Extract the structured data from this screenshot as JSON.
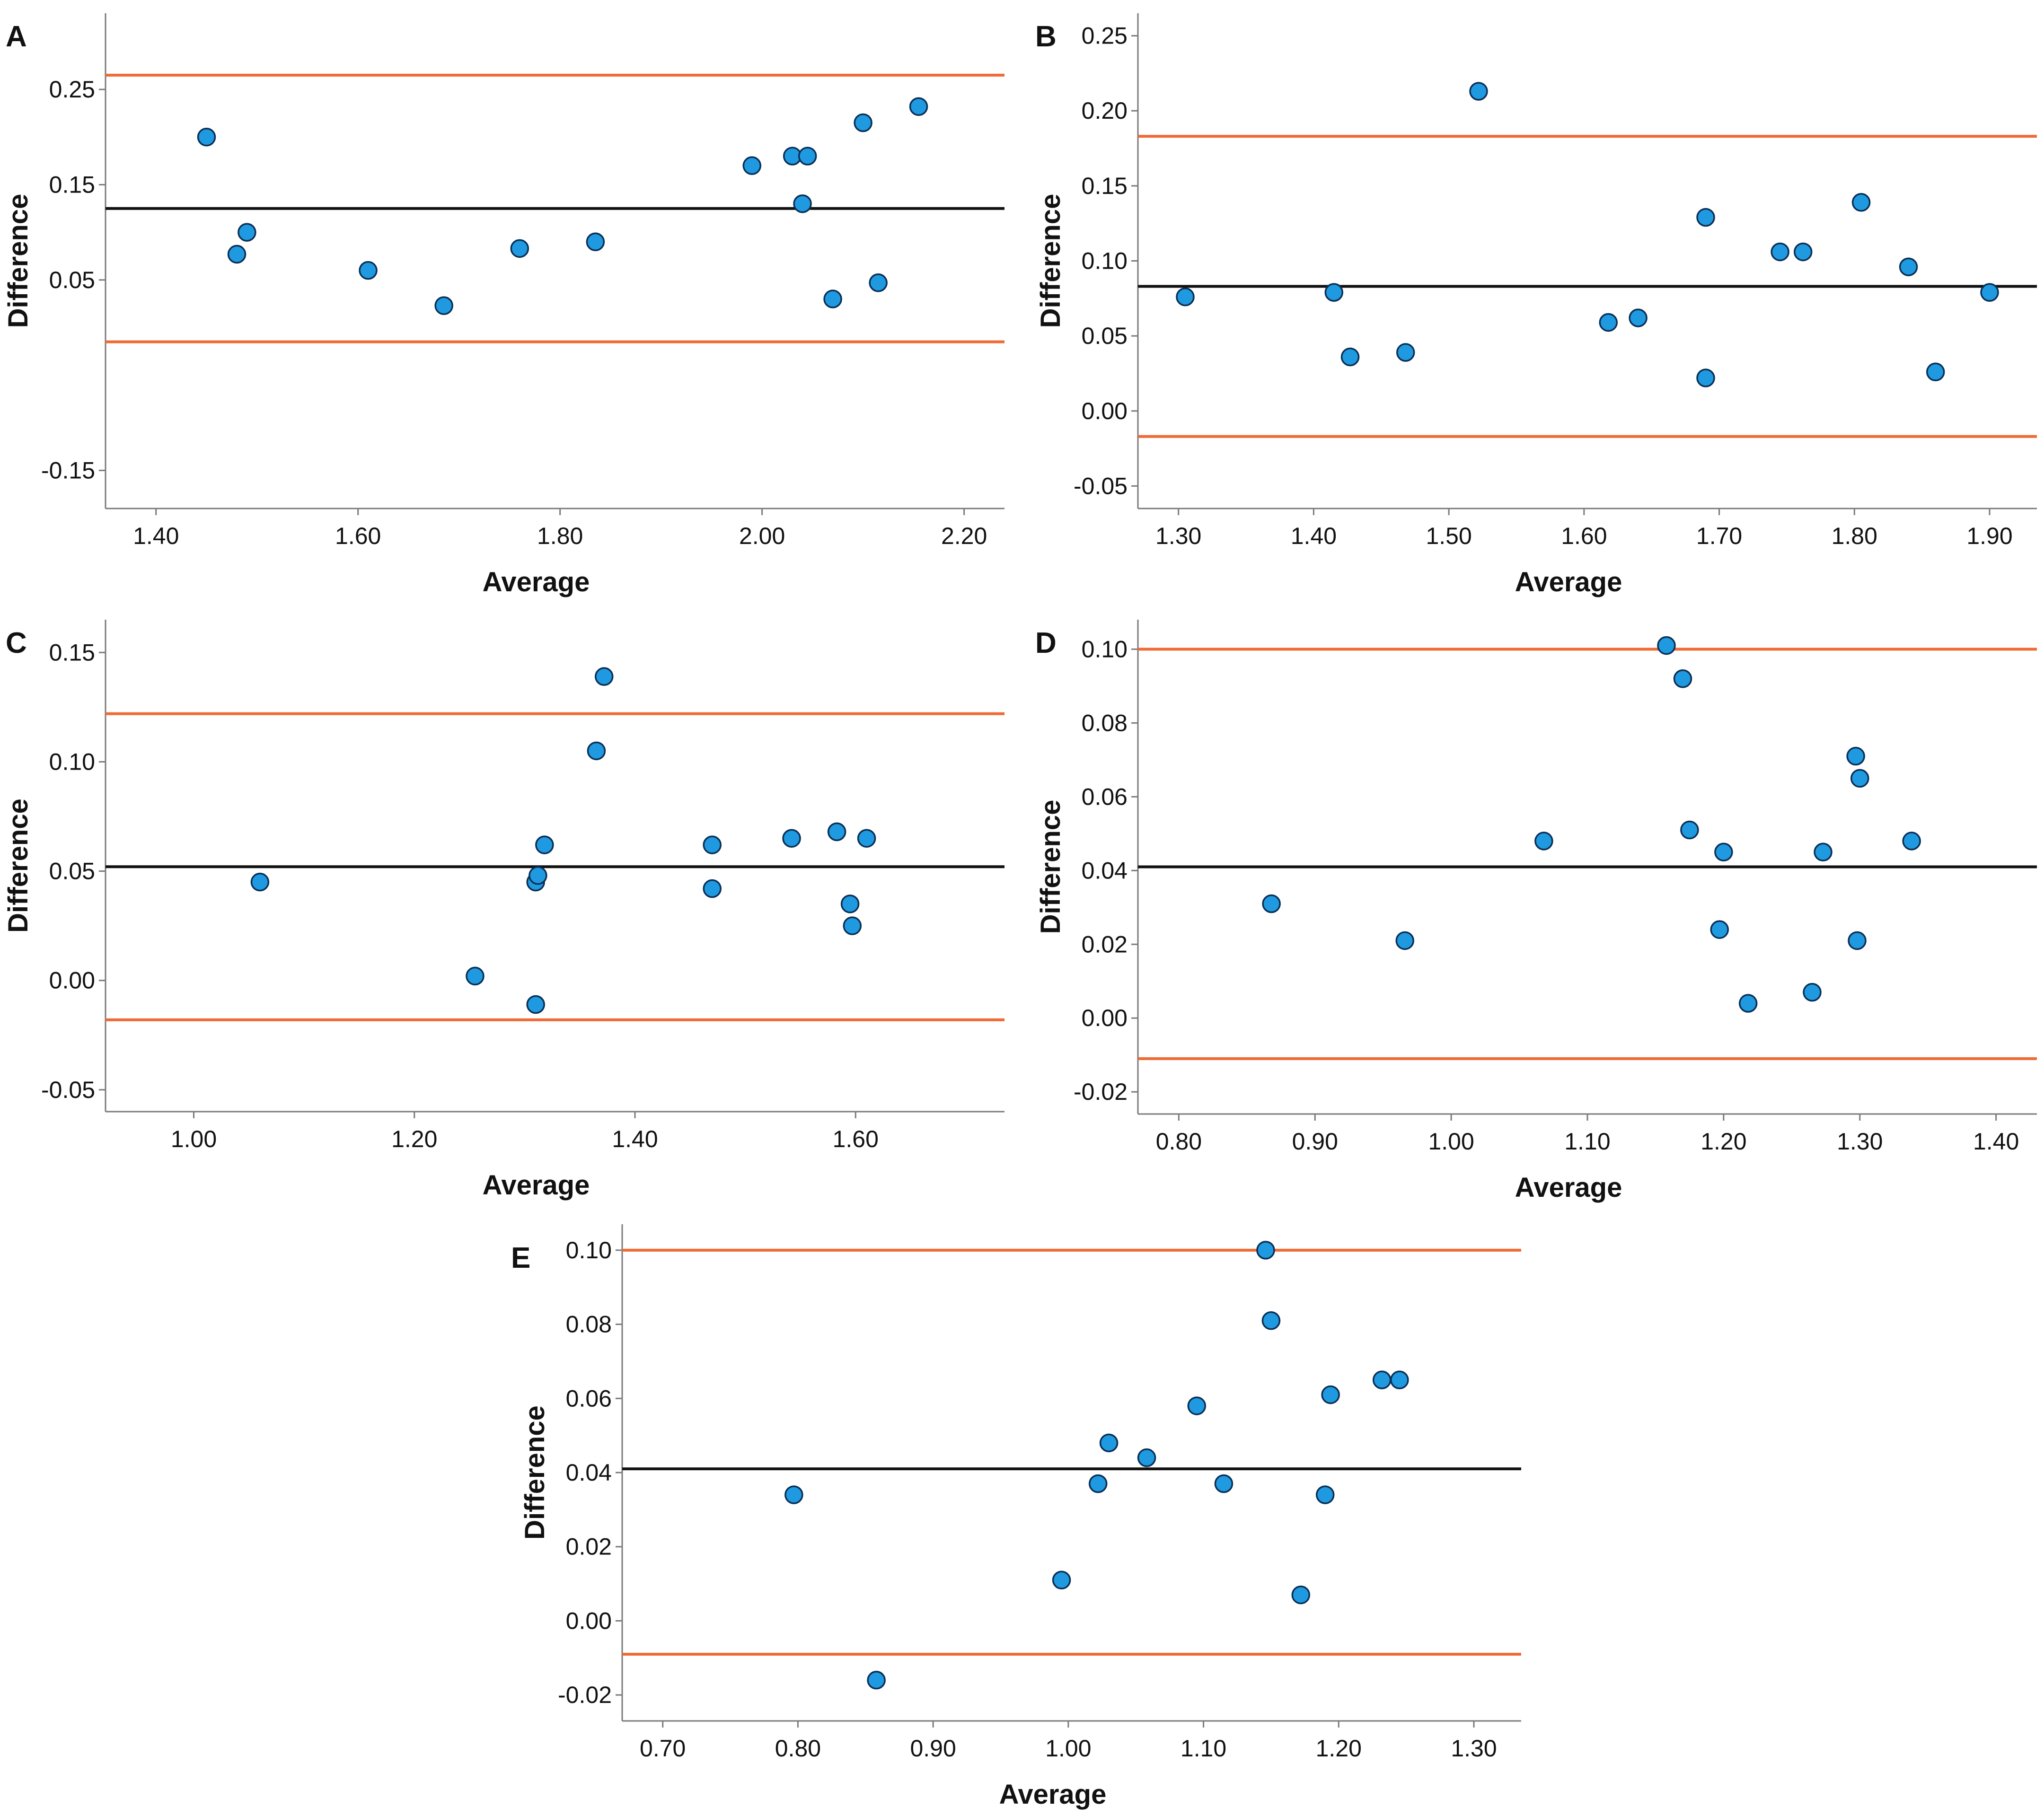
{
  "figure": {
    "line_colors": {
      "mean": "#111111",
      "limits": "#ef6a34"
    },
    "point_fill": "#1f9ae0",
    "point_stroke": "#0a2f55"
  },
  "chart_data": [
    {
      "panel": "A",
      "type": "scatter",
      "xlabel": "Average",
      "ylabel": "Difference",
      "xlim": [
        1.35,
        2.24
      ],
      "ylim": [
        -0.19,
        0.33
      ],
      "xticks": [
        1.4,
        1.6,
        1.8,
        2.0,
        2.2
      ],
      "xtick_labels": [
        "1.40",
        "1.60",
        "1.80",
        "2.00",
        "2.20"
      ],
      "yticks": [
        -0.15,
        0.05,
        0.15,
        0.25
      ],
      "ytick_labels": [
        "-0.15",
        "0.05",
        "0.15",
        "0.25"
      ],
      "mean_line": 0.125,
      "limits_of_agreement": [
        -0.015,
        0.265
      ],
      "points": [
        {
          "x": 1.45,
          "y": 0.2
        },
        {
          "x": 1.48,
          "y": 0.077
        },
        {
          "x": 1.49,
          "y": 0.1
        },
        {
          "x": 1.61,
          "y": 0.06
        },
        {
          "x": 1.685,
          "y": 0.023
        },
        {
          "x": 1.76,
          "y": 0.083
        },
        {
          "x": 1.835,
          "y": 0.09
        },
        {
          "x": 1.99,
          "y": 0.17
        },
        {
          "x": 2.03,
          "y": 0.18
        },
        {
          "x": 2.045,
          "y": 0.18
        },
        {
          "x": 2.04,
          "y": 0.13
        },
        {
          "x": 2.07,
          "y": 0.03
        },
        {
          "x": 2.1,
          "y": 0.215
        },
        {
          "x": 2.115,
          "y": 0.047
        },
        {
          "x": 2.155,
          "y": 0.232
        }
      ]
    },
    {
      "panel": "B",
      "type": "scatter",
      "xlabel": "Average",
      "ylabel": "Difference",
      "xlim": [
        1.27,
        1.935
      ],
      "ylim": [
        -0.065,
        0.265
      ],
      "xticks": [
        1.3,
        1.4,
        1.5,
        1.6,
        1.7,
        1.8,
        1.9
      ],
      "xtick_labels": [
        "1.30",
        "1.40",
        "1.50",
        "1.60",
        "1.70",
        "1.80",
        "1.90"
      ],
      "yticks": [
        -0.05,
        0.0,
        0.05,
        0.1,
        0.15,
        0.2,
        0.25
      ],
      "ytick_labels": [
        "-0.05",
        "0.00",
        "0.05",
        "0.10",
        "0.15",
        "0.20",
        "0.25"
      ],
      "mean_line": 0.083,
      "limits_of_agreement": [
        -0.017,
        0.183
      ],
      "points": [
        {
          "x": 1.305,
          "y": 0.076
        },
        {
          "x": 1.415,
          "y": 0.079
        },
        {
          "x": 1.427,
          "y": 0.036
        },
        {
          "x": 1.468,
          "y": 0.039
        },
        {
          "x": 1.522,
          "y": 0.213
        },
        {
          "x": 1.618,
          "y": 0.059
        },
        {
          "x": 1.64,
          "y": 0.062
        },
        {
          "x": 1.69,
          "y": 0.129
        },
        {
          "x": 1.69,
          "y": 0.022
        },
        {
          "x": 1.745,
          "y": 0.106
        },
        {
          "x": 1.762,
          "y": 0.106
        },
        {
          "x": 1.805,
          "y": 0.139
        },
        {
          "x": 1.84,
          "y": 0.096
        },
        {
          "x": 1.86,
          "y": 0.026
        },
        {
          "x": 1.9,
          "y": 0.079
        }
      ]
    },
    {
      "panel": "C",
      "type": "scatter",
      "xlabel": "Average",
      "ylabel": "Difference",
      "xlim": [
        0.92,
        1.735
      ],
      "ylim": [
        -0.06,
        0.165
      ],
      "xticks": [
        1.0,
        1.2,
        1.4,
        1.6
      ],
      "xtick_labels": [
        "1.00",
        "1.20",
        "1.40",
        "1.60"
      ],
      "yticks": [
        -0.05,
        0.0,
        0.05,
        0.1,
        0.15
      ],
      "ytick_labels": [
        "-0.05",
        "0.00",
        "0.05",
        "0.10",
        "0.15"
      ],
      "mean_line": 0.052,
      "limits_of_agreement": [
        -0.018,
        0.122
      ],
      "points": [
        {
          "x": 1.06,
          "y": 0.045
        },
        {
          "x": 1.255,
          "y": 0.002
        },
        {
          "x": 1.31,
          "y": -0.011
        },
        {
          "x": 1.31,
          "y": 0.045
        },
        {
          "x": 1.312,
          "y": 0.048
        },
        {
          "x": 1.318,
          "y": 0.062
        },
        {
          "x": 1.365,
          "y": 0.105
        },
        {
          "x": 1.372,
          "y": 0.139
        },
        {
          "x": 1.47,
          "y": 0.062
        },
        {
          "x": 1.47,
          "y": 0.042
        },
        {
          "x": 1.542,
          "y": 0.065
        },
        {
          "x": 1.583,
          "y": 0.068
        },
        {
          "x": 1.595,
          "y": 0.035
        },
        {
          "x": 1.597,
          "y": 0.025
        },
        {
          "x": 1.61,
          "y": 0.065
        }
      ]
    },
    {
      "panel": "D",
      "type": "scatter",
      "xlabel": "Average",
      "ylabel": "Difference",
      "xlim": [
        0.77,
        1.43
      ],
      "ylim": [
        -0.026,
        0.108
      ],
      "xticks": [
        0.8,
        0.9,
        1.0,
        1.1,
        1.2,
        1.3,
        1.4
      ],
      "xtick_labels": [
        "0.80",
        "0.90",
        "1.00",
        "1.10",
        "1.20",
        "1.30",
        "1.40"
      ],
      "yticks": [
        -0.02,
        0.0,
        0.02,
        0.04,
        0.06,
        0.08,
        0.1
      ],
      "ytick_labels": [
        "-0.02",
        "0.00",
        "0.02",
        "0.04",
        "0.06",
        "0.08",
        "0.10"
      ],
      "mean_line": 0.041,
      "limits_of_agreement": [
        -0.011,
        0.1
      ],
      "points": [
        {
          "x": 0.868,
          "y": 0.031
        },
        {
          "x": 0.966,
          "y": 0.021
        },
        {
          "x": 1.068,
          "y": 0.048
        },
        {
          "x": 1.158,
          "y": 0.101
        },
        {
          "x": 1.17,
          "y": 0.092
        },
        {
          "x": 1.175,
          "y": 0.051
        },
        {
          "x": 1.197,
          "y": 0.024
        },
        {
          "x": 1.2,
          "y": 0.045
        },
        {
          "x": 1.218,
          "y": 0.004
        },
        {
          "x": 1.265,
          "y": 0.007
        },
        {
          "x": 1.273,
          "y": 0.045
        },
        {
          "x": 1.297,
          "y": 0.071
        },
        {
          "x": 1.3,
          "y": 0.065
        },
        {
          "x": 1.298,
          "y": 0.021
        },
        {
          "x": 1.338,
          "y": 0.048
        }
      ]
    },
    {
      "panel": "E",
      "type": "scatter",
      "xlabel": "Average",
      "ylabel": "Difference",
      "xlim": [
        0.67,
        1.335
      ],
      "ylim": [
        -0.027,
        0.107
      ],
      "xticks": [
        0.7,
        0.8,
        0.9,
        1.0,
        1.1,
        1.2,
        1.3
      ],
      "xtick_labels": [
        "0.70",
        "0.80",
        "0.90",
        "1.00",
        "1.10",
        "1.20",
        "1.30"
      ],
      "yticks": [
        -0.02,
        0.0,
        0.02,
        0.04,
        0.06,
        0.08,
        0.1
      ],
      "ytick_labels": [
        "-0.02",
        "0.00",
        "0.02",
        "0.04",
        "0.06",
        "0.08",
        "0.10"
      ],
      "mean_line": 0.041,
      "limits_of_agreement": [
        -0.009,
        0.1
      ],
      "points": [
        {
          "x": 0.797,
          "y": 0.034
        },
        {
          "x": 0.858,
          "y": -0.016
        },
        {
          "x": 0.995,
          "y": 0.011
        },
        {
          "x": 1.022,
          "y": 0.037
        },
        {
          "x": 1.03,
          "y": 0.048
        },
        {
          "x": 1.058,
          "y": 0.044
        },
        {
          "x": 1.095,
          "y": 0.058
        },
        {
          "x": 1.115,
          "y": 0.037
        },
        {
          "x": 1.146,
          "y": 0.1
        },
        {
          "x": 1.15,
          "y": 0.081
        },
        {
          "x": 1.172,
          "y": 0.007
        },
        {
          "x": 1.19,
          "y": 0.034
        },
        {
          "x": 1.194,
          "y": 0.061
        },
        {
          "x": 1.232,
          "y": 0.065
        },
        {
          "x": 1.245,
          "y": 0.065
        }
      ]
    }
  ]
}
